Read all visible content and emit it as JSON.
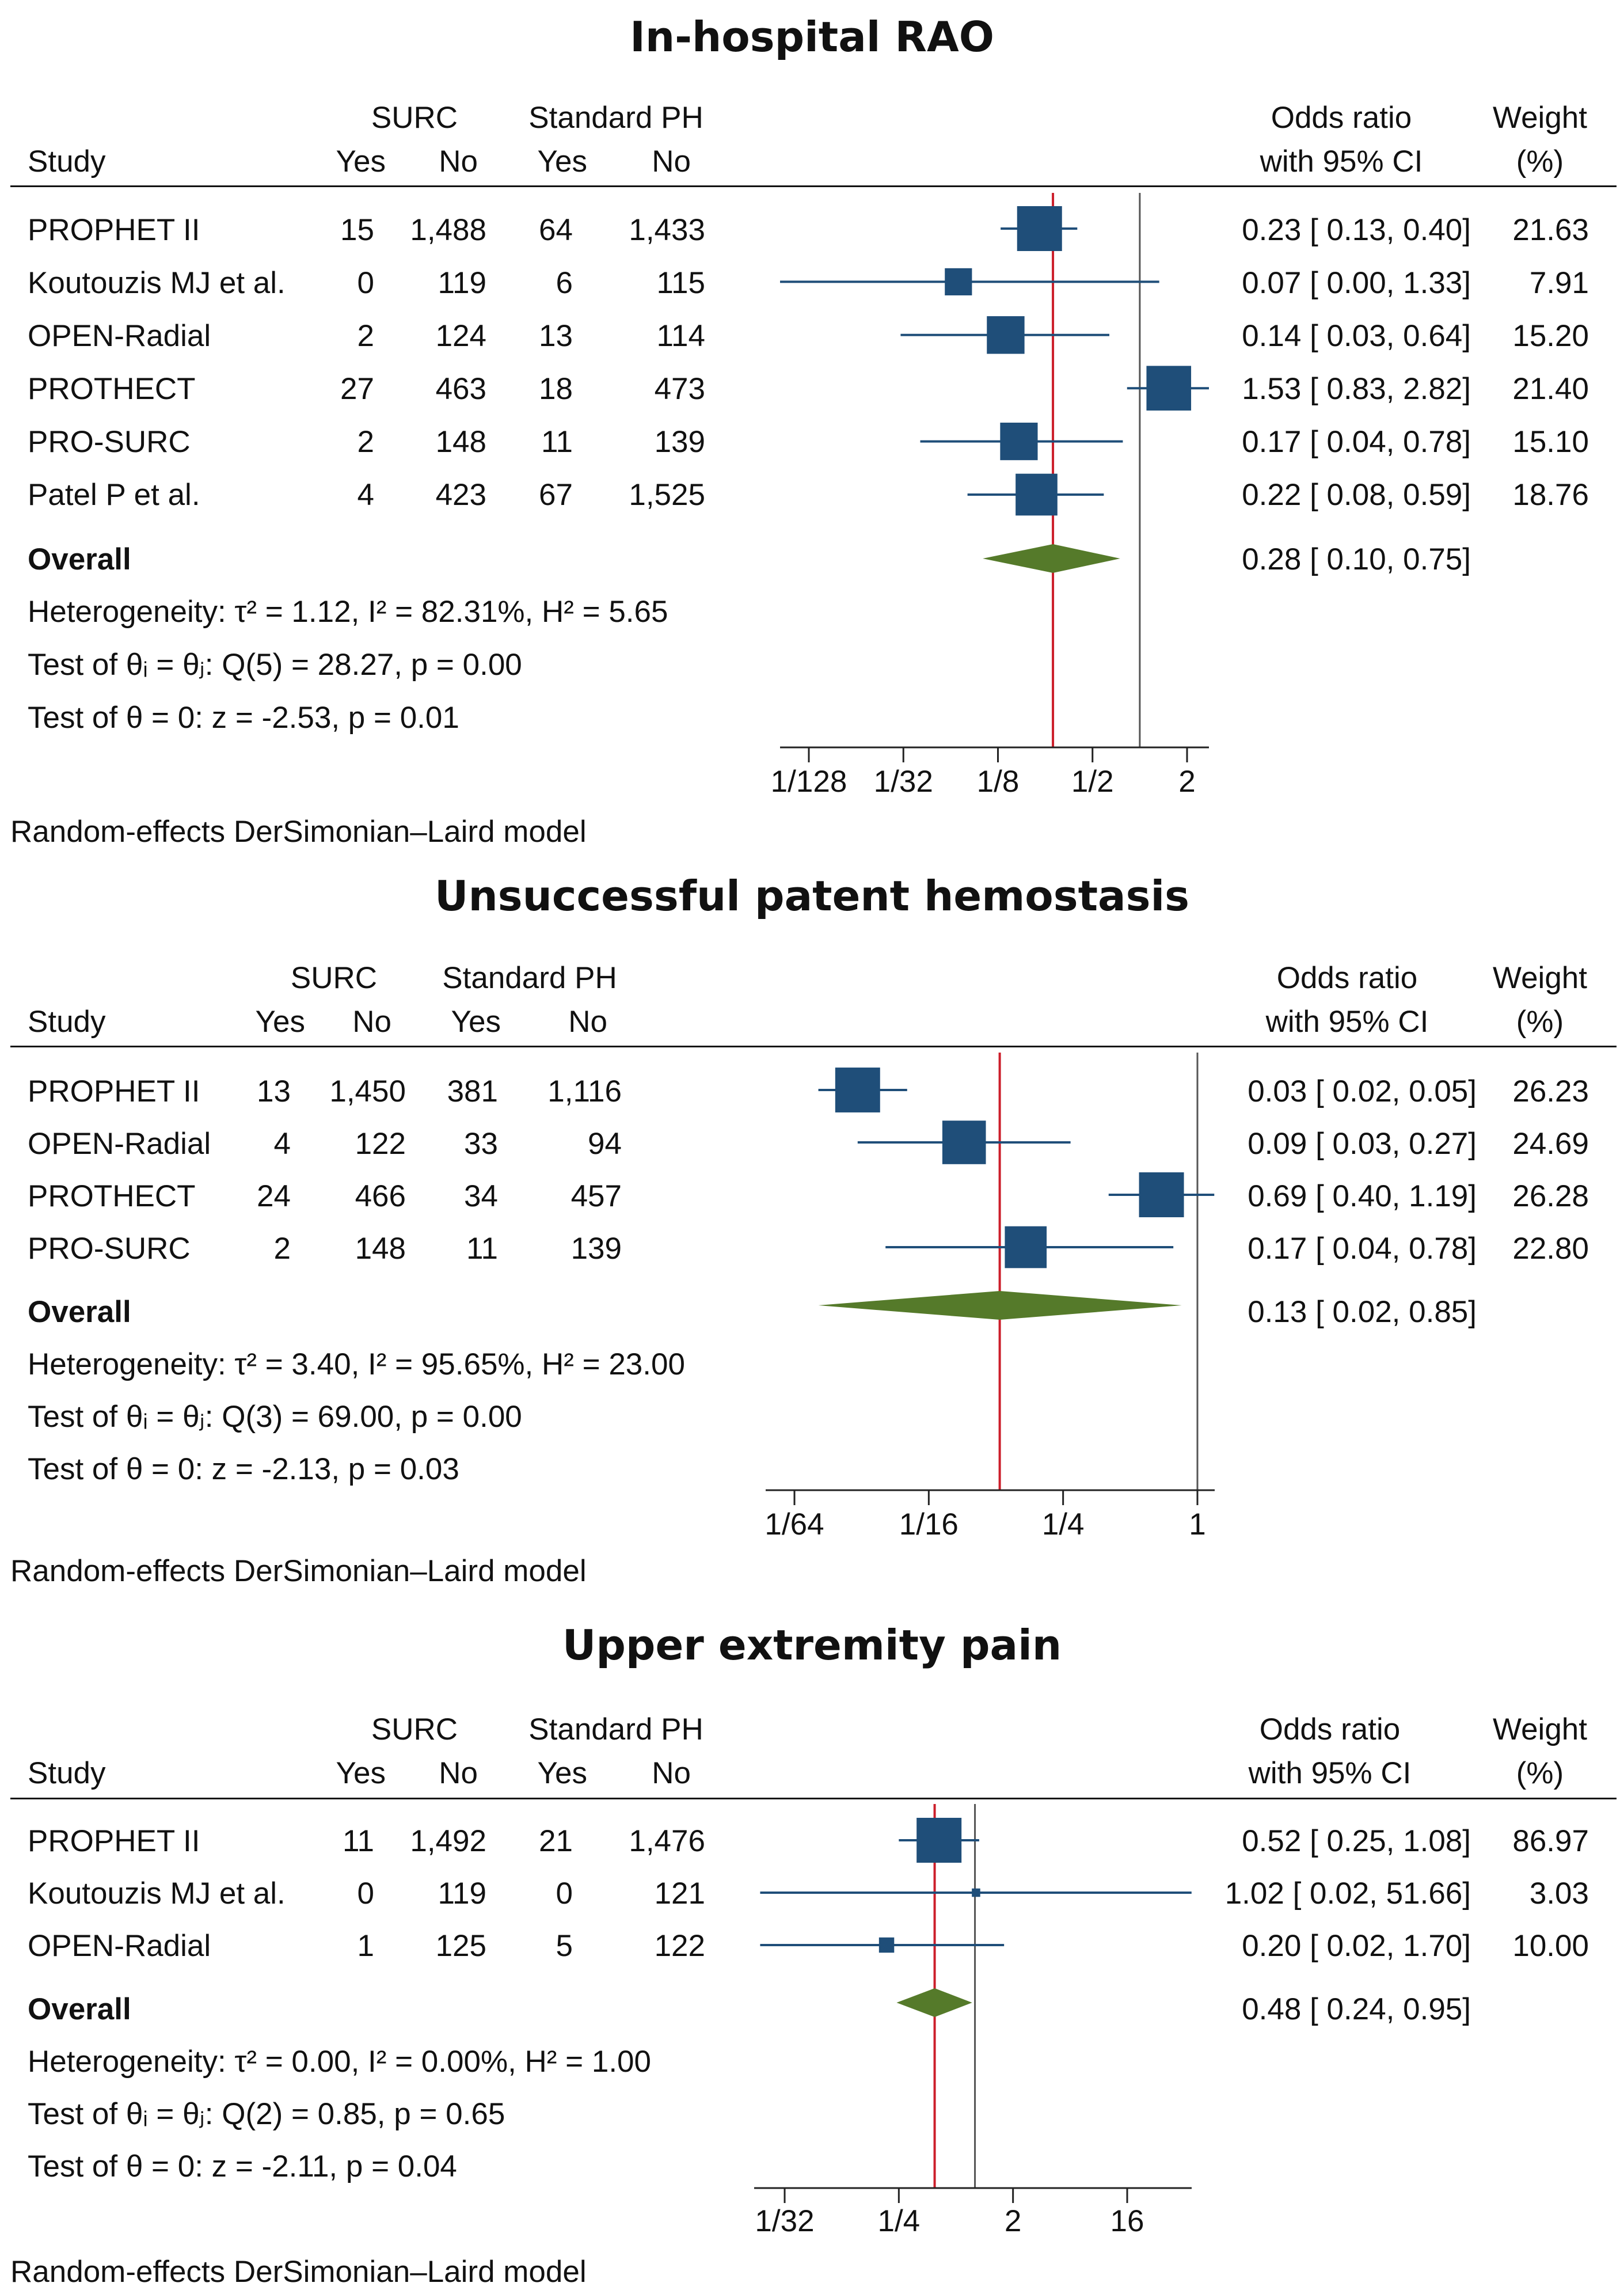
{
  "colors": {
    "box": "#1f4e79",
    "diamond": "#557a2a",
    "overall_line": "#cc1f2b",
    "null_line": "#555555"
  },
  "header": {
    "surc": "SURC",
    "standard_ph": "Standard PH",
    "study": "Study",
    "yes": "Yes",
    "no": "No",
    "or_line1": "Odds ratio",
    "or_line2": "with 95% CI",
    "weight_line1": "Weight",
    "weight_line2": "(%)"
  },
  "overall_label": "Overall",
  "model_note": "Random-effects DerSimonian–Laird model",
  "panels": [
    {
      "title": "In-hospital RAO",
      "heterogeneity": "Heterogeneity: τ² = 1.12, I² = 82.31%, H² = 5.65",
      "q_test": "Test of θᵢ = θⱼ: Q(5) = 28.27, p = 0.00",
      "z_test": "Test of θ = 0: z = -2.53, p = 0.01",
      "overall_ci": "0.28 [ 0.10,  0.75]",
      "ticks": [
        "1/128",
        "1/32",
        "1/8",
        "1/2",
        "2"
      ]
    },
    {
      "title": "Unsuccessful patent hemostasis",
      "heterogeneity": "Heterogeneity: τ² = 3.40, I² = 95.65%, H² = 23.00",
      "q_test": "Test of θᵢ = θⱼ: Q(3) = 69.00, p = 0.00",
      "z_test": "Test of θ = 0: z = -2.13, p = 0.03",
      "overall_ci": "0.13 [ 0.02,  0.85]",
      "ticks": [
        "1/64",
        "1/16",
        "1/4",
        "1"
      ]
    },
    {
      "title": "Upper extremity pain",
      "heterogeneity": "Heterogeneity: τ² = 0.00, I² = 0.00%, H² = 1.00",
      "q_test": "Test of θᵢ = θⱼ: Q(2) = 0.85, p = 0.65",
      "z_test": "Test of θ = 0: z = -2.11, p = 0.04",
      "overall_ci": "0.48 [ 0.24,   0.95]",
      "ticks": [
        "1/32",
        "1/4",
        "2",
        "16"
      ]
    }
  ],
  "chart_data": [
    {
      "type": "forest",
      "title": "In-hospital RAO",
      "x_scale": "log2",
      "xlim": [
        0.0078125,
        2
      ],
      "xticks": [
        0.0078125,
        0.03125,
        0.125,
        0.5,
        2
      ],
      "studies": [
        {
          "study": "PROPHET II",
          "surc_yes": "15",
          "surc_no": "1,488",
          "std_yes": "64",
          "std_no": "1,433",
          "or": 0.23,
          "lo": 0.13,
          "hi": 0.4,
          "ci_text": "0.23 [ 0.13,  0.40]",
          "weight": "21.63"
        },
        {
          "study": "Koutouzis MJ et al.",
          "surc_yes": "0",
          "surc_no": "119",
          "std_yes": "6",
          "std_no": "115",
          "or": 0.07,
          "lo": 0.0,
          "hi": 1.33,
          "ci_text": "0.07 [ 0.00,  1.33]",
          "weight": "7.91"
        },
        {
          "study": "OPEN-Radial",
          "surc_yes": "2",
          "surc_no": "124",
          "std_yes": "13",
          "std_no": "114",
          "or": 0.14,
          "lo": 0.03,
          "hi": 0.64,
          "ci_text": "0.14 [ 0.03,  0.64]",
          "weight": "15.20"
        },
        {
          "study": "PROTHECT",
          "surc_yes": "27",
          "surc_no": "463",
          "std_yes": "18",
          "std_no": "473",
          "or": 1.53,
          "lo": 0.83,
          "hi": 2.82,
          "ci_text": "1.53 [ 0.83,  2.82]",
          "weight": "21.40"
        },
        {
          "study": "PRO-SURC",
          "surc_yes": "2",
          "surc_no": "148",
          "std_yes": "11",
          "std_no": "139",
          "or": 0.17,
          "lo": 0.04,
          "hi": 0.78,
          "ci_text": "0.17 [ 0.04,  0.78]",
          "weight": "15.10"
        },
        {
          "study": "Patel P et al.",
          "surc_yes": "4",
          "surc_no": "423",
          "std_yes": "67",
          "std_no": "1,525",
          "or": 0.22,
          "lo": 0.08,
          "hi": 0.59,
          "ci_text": "0.22 [ 0.08,  0.59]",
          "weight": "18.76"
        }
      ],
      "overall": {
        "or": 0.28,
        "lo": 0.1,
        "hi": 0.75
      }
    },
    {
      "type": "forest",
      "title": "Unsuccessful patent hemostasis",
      "x_scale": "log2",
      "xlim": [
        0.015625,
        1
      ],
      "xticks": [
        0.015625,
        0.0625,
        0.25,
        1
      ],
      "studies": [
        {
          "study": "PROPHET II",
          "surc_yes": "13",
          "surc_no": "1,450",
          "std_yes": "381",
          "std_no": "1,116",
          "or": 0.03,
          "lo": 0.02,
          "hi": 0.05,
          "ci_text": "0.03 [ 0.02,  0.05]",
          "weight": "26.23"
        },
        {
          "study": "OPEN-Radial",
          "surc_yes": "4",
          "surc_no": "122",
          "std_yes": "33",
          "std_no": "94",
          "or": 0.09,
          "lo": 0.03,
          "hi": 0.27,
          "ci_text": "0.09 [ 0.03,  0.27]",
          "weight": "24.69"
        },
        {
          "study": "PROTHECT",
          "surc_yes": "24",
          "surc_no": "466",
          "std_yes": "34",
          "std_no": "457",
          "or": 0.69,
          "lo": 0.4,
          "hi": 1.19,
          "ci_text": "0.69 [ 0.40,  1.19]",
          "weight": "26.28"
        },
        {
          "study": "PRO-SURC",
          "surc_yes": "2",
          "surc_no": "148",
          "std_yes": "11",
          "std_no": "139",
          "or": 0.17,
          "lo": 0.04,
          "hi": 0.78,
          "ci_text": "0.17 [ 0.04,  0.78]",
          "weight": "22.80"
        }
      ],
      "overall": {
        "or": 0.13,
        "lo": 0.02,
        "hi": 0.85
      }
    },
    {
      "type": "forest",
      "title": "Upper extremity pain",
      "x_scale": "log2",
      "xlim": [
        0.03125,
        16
      ],
      "xticks": [
        0.03125,
        0.25,
        2,
        16
      ],
      "studies": [
        {
          "study": "PROPHET II",
          "surc_yes": "11",
          "surc_no": "1,492",
          "std_yes": "21",
          "std_no": "1,476",
          "or": 0.52,
          "lo": 0.25,
          "hi": 1.08,
          "ci_text": "0.52 [ 0.25,   1.08]",
          "weight": "86.97"
        },
        {
          "study": "Koutouzis MJ et al.",
          "surc_yes": "0",
          "surc_no": "119",
          "std_yes": "0",
          "std_no": "121",
          "or": 1.02,
          "lo": 0.02,
          "hi": 51.66,
          "ci_text": "1.02 [ 0.02,  51.66]",
          "weight": "3.03"
        },
        {
          "study": "OPEN-Radial",
          "surc_yes": "1",
          "surc_no": "125",
          "std_yes": "5",
          "std_no": "122",
          "or": 0.2,
          "lo": 0.02,
          "hi": 1.7,
          "ci_text": "0.20 [ 0.02,   1.70]",
          "weight": "10.00"
        }
      ],
      "overall": {
        "or": 0.48,
        "lo": 0.24,
        "hi": 0.95
      }
    }
  ]
}
